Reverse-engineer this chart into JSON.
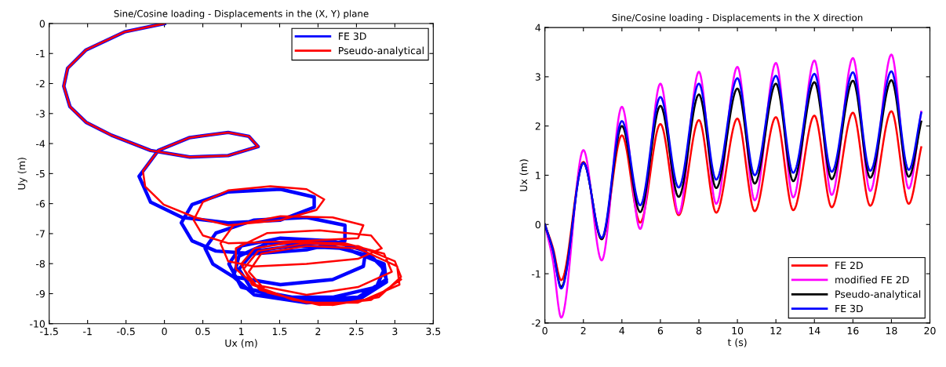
{
  "chart_data": [
    {
      "type": "line",
      "title": "Sine/Cosine loading - Displacements in the (X, Y) plane",
      "xlabel": "Ux (m)",
      "ylabel": "Uy (m)",
      "xlim": [
        -1.5,
        3.5
      ],
      "xticks": [
        -1.5,
        -1,
        -0.5,
        0,
        0.5,
        1,
        1.5,
        2,
        2.5,
        3,
        3.5
      ],
      "ylim": [
        -10,
        0
      ],
      "yticks": [
        -10,
        -9,
        -8,
        -7,
        -6,
        -5,
        -4,
        -3,
        -2,
        -1,
        0
      ],
      "grid": false,
      "legend": "top right",
      "marker": "none",
      "line_style": "solid",
      "series": [
        {
          "name": "FE 3D",
          "color": "#0000ff",
          "x": [
            0,
            -0.52,
            -1.02,
            -1.26,
            -1.31,
            -1.23,
            -1.02,
            -0.69,
            -0.18,
            0.33,
            0.83,
            1.22,
            1.1,
            0.83,
            0.33,
            -0.08,
            -0.33,
            -0.18,
            0.23,
            0.83,
            1.51,
            1.95,
            1.95,
            1.51,
            0.83,
            0.36,
            0.22,
            0.36,
            0.67,
            1.17,
            1.85,
            2.35,
            2.35,
            1.85,
            1.17,
            0.67,
            0.53,
            0.63,
            0.9,
            1.51,
            2.19,
            2.59,
            2.62,
            2.19,
            1.51,
            1.0,
            0.84,
            1.0,
            1.51,
            2.19,
            2.76,
            2.86,
            2.69,
            2.02,
            1.34,
            0.97,
            0.9,
            1.17,
            1.85,
            2.52,
            2.89,
            2.86,
            2.35,
            1.68,
            1.17,
            0.97,
            1.14,
            1.85,
            2.52,
            2.89,
            2.82
          ],
          "values": [
            0,
            -0.28,
            -0.88,
            -1.49,
            -2.09,
            -2.77,
            -3.29,
            -3.72,
            -4.23,
            -4.45,
            -4.4,
            -4.1,
            -3.76,
            -3.63,
            -3.8,
            -4.23,
            -5.09,
            -5.95,
            -6.46,
            -6.64,
            -6.55,
            -6.12,
            -5.78,
            -5.52,
            -5.61,
            -6.03,
            -6.64,
            -7.24,
            -7.58,
            -7.67,
            -7.54,
            -7.24,
            -6.72,
            -6.46,
            -6.55,
            -6.98,
            -7.49,
            -8.01,
            -8.44,
            -8.7,
            -8.53,
            -8.09,
            -7.58,
            -7.24,
            -7.15,
            -7.41,
            -8.01,
            -8.78,
            -9.12,
            -9.12,
            -8.78,
            -8.18,
            -7.75,
            -7.32,
            -7.32,
            -7.75,
            -8.44,
            -9.04,
            -9.3,
            -9.21,
            -8.61,
            -8.01,
            -7.49,
            -7.41,
            -7.58,
            -8.18,
            -8.87,
            -9.21,
            -9.12,
            -8.53,
            -8.01
          ]
        },
        {
          "name": "Pseudo-analytical",
          "color": "#ff0000",
          "x": [
            0,
            -0.52,
            -1.02,
            -1.26,
            -1.31,
            -1.23,
            -1.02,
            -0.69,
            -0.18,
            0.33,
            0.83,
            1.22,
            1.1,
            0.83,
            0.33,
            -0.08,
            -0.28,
            -0.25,
            -0.01,
            0.4,
            0.83,
            1.51,
            1.98,
            2.08,
            1.85,
            1.38,
            0.83,
            0.5,
            0.38,
            0.5,
            0.83,
            1.85,
            2.52,
            2.59,
            2.19,
            1.51,
            0.9,
            0.73,
            0.83,
            1.17,
            1.85,
            2.52,
            2.83,
            2.69,
            2.02,
            1.34,
            0.93,
            0.93,
            1.17,
            1.85,
            2.52,
            2.96,
            2.86,
            2.35,
            1.68,
            1.17,
            1.0,
            1.14,
            1.68,
            2.19,
            2.79,
            3.08,
            3.0,
            2.52,
            1.85,
            1.22,
            1.03,
            1.24,
            1.85,
            2.52,
            3.06,
            3.03,
            2.52,
            1.85,
            1.26,
            1.1,
            1.34,
            2.02,
            2.69,
            3.08
          ],
          "values": [
            0,
            -0.28,
            -0.88,
            -1.49,
            -2.09,
            -2.77,
            -3.29,
            -3.72,
            -4.23,
            -4.45,
            -4.4,
            -4.1,
            -3.76,
            -3.63,
            -3.8,
            -4.23,
            -4.92,
            -5.43,
            -6.03,
            -6.46,
            -6.72,
            -6.55,
            -6.21,
            -5.86,
            -5.52,
            -5.42,
            -5.56,
            -5.95,
            -6.55,
            -7.06,
            -7.32,
            -7.24,
            -7.15,
            -6.72,
            -6.46,
            -6.42,
            -6.72,
            -7.32,
            -7.92,
            -8.09,
            -8.01,
            -7.84,
            -7.49,
            -7.06,
            -6.89,
            -6.98,
            -7.49,
            -8.18,
            -8.7,
            -9.04,
            -8.78,
            -8.27,
            -7.67,
            -7.32,
            -7.28,
            -7.49,
            -8.01,
            -8.7,
            -9.21,
            -9.38,
            -9.12,
            -8.44,
            -7.92,
            -7.41,
            -7.32,
            -7.58,
            -8.18,
            -8.87,
            -9.3,
            -9.3,
            -8.7,
            -8.09,
            -7.49,
            -7.41,
            -7.67,
            -8.27,
            -8.96,
            -9.38,
            -9.21,
            -8.53
          ]
        }
      ]
    },
    {
      "type": "line",
      "title": "Sine/Cosine loading - Displacements in the X direction",
      "xlabel": "t (s)",
      "ylabel": "Ux (m)",
      "xlim": [
        0,
        20
      ],
      "xticks": [
        0,
        2,
        4,
        6,
        8,
        10,
        12,
        14,
        16,
        18,
        20
      ],
      "ylim": [
        -2,
        4
      ],
      "yticks": [
        -2,
        -1,
        0,
        1,
        2,
        3,
        4
      ],
      "grid": false,
      "legend": "bottom right",
      "marker": "none",
      "line_style": "solid",
      "x": [
        0,
        0.4,
        0.85,
        2,
        2.95,
        4,
        4.95,
        6,
        6.95,
        8,
        8.9,
        10,
        10.9,
        12,
        12.9,
        14,
        14.9,
        16,
        16.9,
        18,
        18.9,
        19.55
      ],
      "series": [
        {
          "name": "FE 2D",
          "color": "#ff0000",
          "values": [
            0,
            -0.45,
            -1.13,
            1.27,
            -0.3,
            1.81,
            0.04,
            2.04,
            0.19,
            2.12,
            0.24,
            2.15,
            0.27,
            2.18,
            0.29,
            2.21,
            0.35,
            2.27,
            0.38,
            2.3,
            0.42,
            1.57
          ]
        },
        {
          "name": "modified FE 2D",
          "color": "#ff00ff",
          "values": [
            0,
            -0.7,
            -1.89,
            1.51,
            -0.73,
            2.39,
            -0.09,
            2.86,
            0.22,
            3.1,
            0.42,
            3.2,
            0.49,
            3.28,
            0.55,
            3.33,
            0.6,
            3.38,
            0.68,
            3.45,
            0.73,
            2.29
          ]
        },
        {
          "name": "Pseudo-analytical",
          "color": "#000000",
          "values": [
            0,
            -0.5,
            -1.27,
            1.25,
            -0.3,
            2.0,
            0.25,
            2.41,
            0.56,
            2.64,
            0.74,
            2.76,
            0.83,
            2.86,
            0.88,
            2.89,
            0.92,
            2.92,
            0.95,
            2.93,
            0.97,
            2.09
          ]
        },
        {
          "name": "FE 3D",
          "color": "#0000ff",
          "values": [
            0,
            -0.5,
            -1.3,
            1.25,
            -0.27,
            2.1,
            0.39,
            2.59,
            0.75,
            2.86,
            0.91,
            2.97,
            1.0,
            3.02,
            1.05,
            3.06,
            1.07,
            3.09,
            1.09,
            3.11,
            1.11,
            2.27
          ]
        }
      ]
    }
  ]
}
